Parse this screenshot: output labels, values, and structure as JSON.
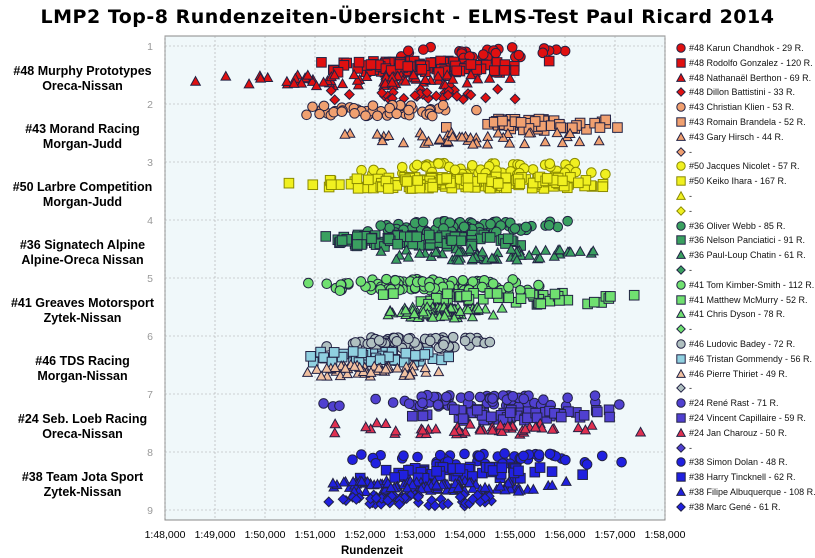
{
  "chart_data": {
    "type": "scatter",
    "title": "LMP2 Top-8 Rundenzeiten-Übersicht - ELMS-Test Paul Ricard 2014",
    "xlabel": "Rundenzeit",
    "ylabel": "",
    "x_range": [
      "1:48,000",
      "1:58,000"
    ],
    "x_ticks": [
      "1:48,000",
      "1:49,000",
      "1:50,000",
      "1:51,000",
      "1:52,000",
      "1:53,000",
      "1:54,000",
      "1:55,000",
      "1:56,000",
      "1:57,000",
      "1:58,000"
    ],
    "y_range": [
      1,
      9
    ],
    "y_ticks": [
      "1",
      "2",
      "3",
      "4",
      "5",
      "6",
      "7",
      "8",
      "9"
    ],
    "y_direction": "down",
    "grid": true,
    "legend_position": "right",
    "teams": [
      {
        "name": "#48 Murphy Prototypes",
        "car": "Oreca-Nissan",
        "rank": 1
      },
      {
        "name": "#43 Morand Racing",
        "car": "Morgan-Judd",
        "rank": 2
      },
      {
        "name": "#50 Larbre Competition",
        "car": "Morgan-Judd",
        "rank": 3
      },
      {
        "name": "#36 Signatech Alpine",
        "car": "Alpine-Oreca Nissan",
        "rank": 4
      },
      {
        "name": "#41 Greaves Motorsport",
        "car": "Zytek-Nissan",
        "rank": 5
      },
      {
        "name": "#46 TDS Racing",
        "car": "Morgan-Nissan",
        "rank": 6
      },
      {
        "name": "#24 Seb. Loeb Racing",
        "car": "Oreca-Nissan",
        "rank": 7
      },
      {
        "name": "#38 Team Jota Sport",
        "car": "Zytek-Nissan",
        "rank": 8
      }
    ],
    "series": [
      {
        "name": "#48 Karun Chandhok - 29 R.",
        "team": 0,
        "sub": 0,
        "marker": "circle",
        "color": "#e01010",
        "laps": 29,
        "x_range_sec": [
          111.0,
          117.6
        ]
      },
      {
        "name": "#48 Rodolfo Gonzalez - 120 R.",
        "team": 0,
        "sub": 1,
        "marker": "square",
        "color": "#e01010",
        "laps": 120,
        "x_range_sec": [
          110.5,
          115.9
        ]
      },
      {
        "name": "#48 Nathanaël Berthon - 69 R.",
        "team": 0,
        "sub": 2,
        "marker": "triangle",
        "color": "#e01010",
        "laps": 69,
        "x_range_sec": [
          108.2,
          115.8
        ]
      },
      {
        "name": "#48 Dillon Battistini - 33 R.",
        "team": 0,
        "sub": 3,
        "marker": "diamond",
        "color": "#e01010",
        "laps": 33,
        "x_range_sec": [
          110.8,
          115.8
        ]
      },
      {
        "name": "#43 Christian Klien - 53 R.",
        "team": 1,
        "sub": 0,
        "marker": "circle",
        "color": "#f0a070",
        "laps": 53,
        "x_range_sec": [
          110.2,
          114.5
        ]
      },
      {
        "name": "#43 Romain Brandela - 52 R.",
        "team": 1,
        "sub": 1,
        "marker": "square",
        "color": "#f0a070",
        "laps": 52,
        "x_range_sec": [
          113.3,
          117.5
        ]
      },
      {
        "name": "#43 Gary Hirsch - 44 R.",
        "team": 1,
        "sub": 2,
        "marker": "triangle",
        "color": "#f0a070",
        "laps": 44,
        "x_range_sec": [
          110.5,
          117.9
        ]
      },
      {
        "name": "-",
        "team": 1,
        "sub": 3,
        "marker": "diamond",
        "color": "#f0a070",
        "laps": 0
      },
      {
        "name": "#50 Jacques Nicolet - 57 R.",
        "team": 2,
        "sub": 0,
        "marker": "circle",
        "color": "#f0f020",
        "laps": 57,
        "x_range_sec": [
          110.8,
          117.9
        ]
      },
      {
        "name": "#50 Keiko Ihara - 167 R.",
        "team": 2,
        "sub": 1,
        "marker": "square",
        "color": "#f0f020",
        "laps": 167,
        "x_range_sec": [
          109.7,
          117.9
        ]
      },
      {
        "name": "-",
        "team": 2,
        "sub": 2,
        "marker": "triangle",
        "color": "#f0f020",
        "laps": 0
      },
      {
        "name": "-",
        "team": 2,
        "sub": 3,
        "marker": "diamond",
        "color": "#f0f020",
        "laps": 0
      },
      {
        "name": "#36 Oliver Webb - 85 R.",
        "team": 3,
        "sub": 0,
        "marker": "circle",
        "color": "#3aa060",
        "laps": 85,
        "x_range_sec": [
          111.0,
          116.5
        ]
      },
      {
        "name": "#36 Nelson Panciatici - 91 R.",
        "team": 3,
        "sub": 1,
        "marker": "square",
        "color": "#3aa060",
        "laps": 91,
        "x_range_sec": [
          110.2,
          116.0
        ]
      },
      {
        "name": "#36 Paul-Loup Chatin - 61 R.",
        "team": 3,
        "sub": 2,
        "marker": "triangle",
        "color": "#3aa060",
        "laps": 61,
        "x_range_sec": [
          111.5,
          117.5
        ]
      },
      {
        "name": "-",
        "team": 3,
        "sub": 3,
        "marker": "diamond",
        "color": "#3aa060",
        "laps": 0
      },
      {
        "name": "#41 Tom Kimber-Smith - 112 R.",
        "team": 4,
        "sub": 0,
        "marker": "circle",
        "color": "#70e070",
        "laps": 112,
        "x_range_sec": [
          110.3,
          116.5
        ]
      },
      {
        "name": "#41 Matthew McMurry - 52 R.",
        "team": 4,
        "sub": 1,
        "marker": "square",
        "color": "#70e070",
        "laps": 52,
        "x_range_sec": [
          111.5,
          118.0
        ]
      },
      {
        "name": "#41 Chris Dyson - 78 R.",
        "team": 4,
        "sub": 2,
        "marker": "triangle",
        "color": "#70e070",
        "laps": 78,
        "x_range_sec": [
          112.0,
          115.0
        ]
      },
      {
        "name": "-",
        "team": 4,
        "sub": 3,
        "marker": "diamond",
        "color": "#70e070",
        "laps": 0
      },
      {
        "name": "#46 Ludovic Badey - 72 R.",
        "team": 5,
        "sub": 0,
        "marker": "circle",
        "color": "#b0c0c0",
        "laps": 72,
        "x_range_sec": [
          110.5,
          115.5
        ]
      },
      {
        "name": "#46 Tristan Gommendy - 56 R.",
        "team": 5,
        "sub": 1,
        "marker": "square",
        "color": "#90d0e0",
        "laps": 56,
        "x_range_sec": [
          110.0,
          114.5
        ]
      },
      {
        "name": "#46 Pierre Thiriet - 49 R.",
        "team": 5,
        "sub": 2,
        "marker": "triangle",
        "color": "#f0c0a0",
        "laps": 49,
        "x_range_sec": [
          110.0,
          114.2
        ]
      },
      {
        "name": "-",
        "team": 5,
        "sub": 3,
        "marker": "diamond",
        "color": "#b0c0c0",
        "laps": 0
      },
      {
        "name": "#24 René Rast - 71 R.",
        "team": 6,
        "sub": 0,
        "marker": "circle",
        "color": "#5040d0",
        "laps": 71,
        "x_range_sec": [
          110.8,
          117.8
        ]
      },
      {
        "name": "#24 Vincent Capillaire - 59 R.",
        "team": 6,
        "sub": 1,
        "marker": "square",
        "color": "#5040d0",
        "laps": 59,
        "x_range_sec": [
          112.3,
          118.0
        ]
      },
      {
        "name": "#24 Jan Charouz - 50 R.",
        "team": 6,
        "sub": 2,
        "marker": "triangle",
        "color": "#e03050",
        "laps": 50,
        "x_range_sec": [
          110.5,
          117.8
        ]
      },
      {
        "name": "-",
        "team": 6,
        "sub": 3,
        "marker": "diamond",
        "color": "#5040d0",
        "laps": 0
      },
      {
        "name": "#38 Simon Dolan - 48 R.",
        "team": 7,
        "sub": 0,
        "marker": "circle",
        "color": "#2020e0",
        "laps": 48,
        "x_range_sec": [
          111.0,
          118.0
        ]
      },
      {
        "name": "#38 Harry Tincknell - 62 R.",
        "team": 7,
        "sub": 1,
        "marker": "square",
        "color": "#2020e0",
        "laps": 62,
        "x_range_sec": [
          110.3,
          117.5
        ]
      },
      {
        "name": "#38 Filipe Albuquerque - 108 R.",
        "team": 7,
        "sub": 2,
        "marker": "triangle",
        "color": "#2020e0",
        "laps": 108,
        "x_range_sec": [
          110.3,
          116.5
        ]
      },
      {
        "name": "#38 Marc Gené - 61 R.",
        "team": 7,
        "sub": 3,
        "marker": "diamond",
        "color": "#2020e0",
        "laps": 61,
        "x_range_sec": [
          110.5,
          115.8
        ]
      }
    ]
  }
}
